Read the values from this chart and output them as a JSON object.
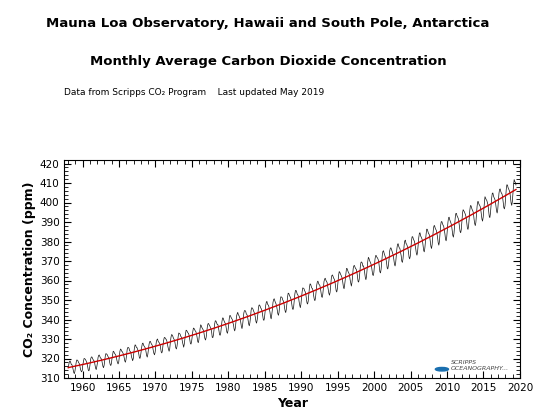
{
  "title_line1": "Mauna Loa Observatory, Hawaii and South Pole, Antarctica",
  "title_line2": "Monthly Average Carbon Dioxide Concentration",
  "subtitle": "Data from Scripps CO₂ Program    Last updated May 2019",
  "xlabel": "Year",
  "ylabel": "CO₂ Concentration (ppm)",
  "xlim": [
    1957.5,
    2020
  ],
  "ylim": [
    310,
    422
  ],
  "xticks": [
    1960,
    1965,
    1970,
    1975,
    1980,
    1985,
    1990,
    1995,
    2000,
    2005,
    2010,
    2015,
    2020
  ],
  "yticks": [
    310,
    320,
    330,
    340,
    350,
    360,
    370,
    380,
    390,
    400,
    410,
    420
  ],
  "trend_color": "#cc0000",
  "monthly_color": "#111111",
  "background_color": "#ffffff",
  "title_fontsize": 9.5,
  "subtitle_fontsize": 6.5,
  "axis_label_fontsize": 9,
  "tick_labelsize": 7.5
}
